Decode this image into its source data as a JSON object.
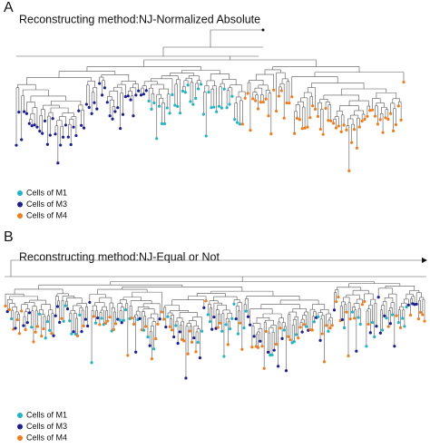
{
  "panels": [
    {
      "label": "A",
      "title": "Reconstructing method:NJ-Normalized Absolute",
      "legend": [
        {
          "name": "Cells of M1",
          "color": "#22b3c6"
        },
        {
          "name": "Cells of M3",
          "color": "#1b1f8e"
        },
        {
          "name": "Cells of M4",
          "color": "#ee7d1c"
        }
      ]
    },
    {
      "label": "B",
      "title": "Reconstructing method:NJ-Equal or Not",
      "legend": [
        {
          "name": "Cells of M1",
          "color": "#22b3c6"
        },
        {
          "name": "Cells of M3",
          "color": "#1b1f8e"
        },
        {
          "name": "Cells of M4",
          "color": "#ee7d1c"
        }
      ]
    }
  ]
}
